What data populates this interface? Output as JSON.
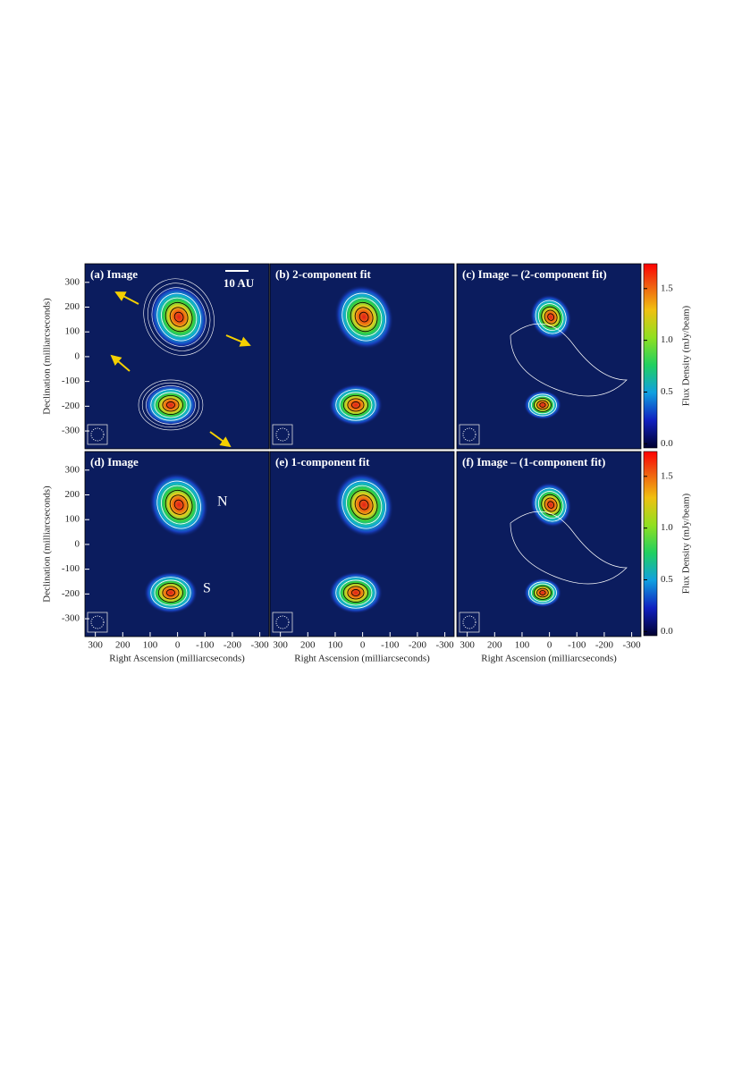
{
  "chart_data": [
    {
      "type": "image",
      "title": "(a) Image",
      "ylabel": "Declination (milliarcseconds)",
      "xlim": [
        338,
        -334
      ],
      "ylim": [
        -372,
        375
      ],
      "yticks": [
        -300,
        -200,
        -100,
        0,
        100,
        200,
        300
      ],
      "annotations": [
        "10 AU"
      ]
    },
    {
      "type": "image",
      "title": "(b) 2-component fit",
      "xlim": [
        338,
        -334
      ],
      "ylim": [
        -372,
        375
      ]
    },
    {
      "type": "image",
      "title": "(c) Image – (2-component fit)",
      "xlim": [
        338,
        -334
      ],
      "ylim": [
        -372,
        375
      ]
    },
    {
      "type": "image",
      "title": "(d) Image",
      "ylabel": "Declination (milliarcseconds)",
      "xlabel": "Right Ascension (milliarcseconds)",
      "xlim": [
        338,
        -334
      ],
      "ylim": [
        -372,
        375
      ],
      "xticks": [
        300,
        200,
        100,
        0,
        -100,
        -200,
        -300
      ],
      "yticks": [
        -300,
        -200,
        -100,
        0,
        100,
        200,
        300
      ],
      "annotations": [
        "N",
        "S"
      ]
    },
    {
      "type": "image",
      "title": "(e) 1-component fit",
      "xlabel": "Right Ascension (milliarcseconds)",
      "xlim": [
        338,
        -334
      ],
      "ylim": [
        -372,
        375
      ],
      "xticks": [
        300,
        200,
        100,
        0,
        -100,
        -200,
        -300
      ]
    },
    {
      "type": "image",
      "title": "(f) Image – (1-component fit)",
      "xlabel": "Right Ascension (milliarcseconds)",
      "xlim": [
        338,
        -334
      ],
      "ylim": [
        -372,
        375
      ],
      "xticks": [
        300,
        200,
        100,
        0,
        -100,
        -200,
        -300
      ]
    },
    {
      "type": "colorbar",
      "ylabel": "Flux Density (mJy/beam)",
      "ylim": [
        -0.04,
        1.74
      ],
      "yticks": [
        {
          "value": 0,
          "label": "0.0"
        },
        0.5,
        {
          "value": 1,
          "label": "1.0"
        },
        1.5
      ]
    },
    {
      "type": "colorbar",
      "ylabel": "Flux Density (mJy/beam)",
      "ylim": [
        -0.04,
        1.74
      ],
      "yticks": [
        {
          "value": 0,
          "label": "0.0"
        },
        0.5,
        {
          "value": 1,
          "label": "1.0"
        },
        1.5
      ]
    }
  ]
}
